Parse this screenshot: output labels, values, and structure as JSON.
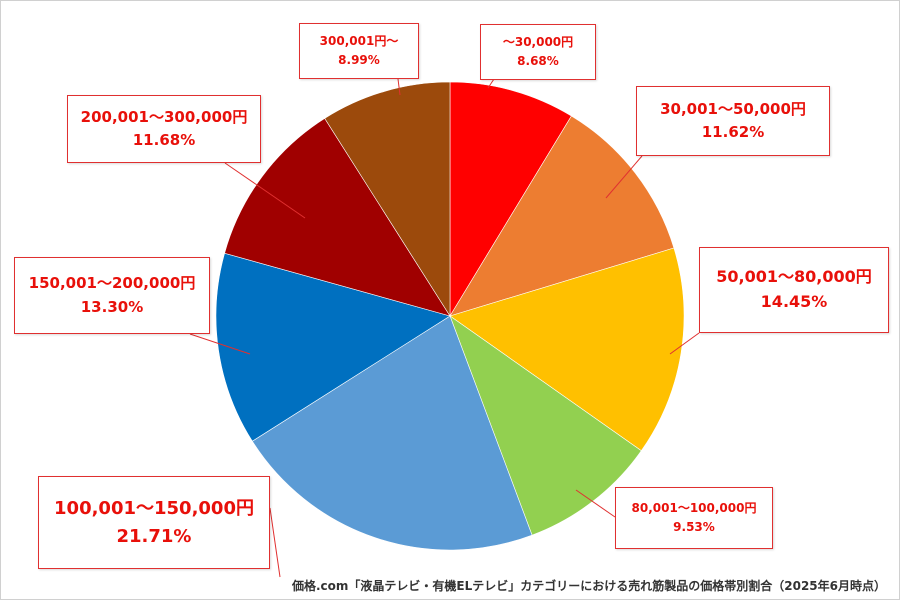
{
  "chart_data": {
    "type": "pie",
    "start_angle_deg": 0,
    "direction": "clockwise",
    "slices": [
      {
        "label": "～30,000円",
        "value": 8.68,
        "percent_label": "8.68%",
        "color": "#ff0000"
      },
      {
        "label": "30,001～50,000円",
        "value": 11.62,
        "percent_label": "11.62%",
        "color": "#ed7d31"
      },
      {
        "label": "50,001～80,000円",
        "value": 14.45,
        "percent_label": "14.45%",
        "color": "#ffc000"
      },
      {
        "label": "80,001～100,000円",
        "value": 9.53,
        "percent_label": "9.53%",
        "color": "#92d050"
      },
      {
        "label": "100,001～150,000円",
        "value": 21.71,
        "percent_label": "21.71%",
        "color": "#5b9bd5"
      },
      {
        "label": "150,001～200,000円",
        "value": 13.3,
        "percent_label": "13.30%",
        "color": "#0070c0"
      },
      {
        "label": "200,001～300,000円",
        "value": 11.68,
        "percent_label": "11.68%",
        "color": "#a00000"
      },
      {
        "label": "300,001円～",
        "value": 8.99,
        "percent_label": "8.99%",
        "color": "#9c4a0c"
      }
    ],
    "label_color": "#e8100a"
  },
  "caption": "価格.com「液晶テレビ・有機ELテレビ」カテゴリーにおける売れ筋製品の価格帯別割合（2025年6月時点）"
}
